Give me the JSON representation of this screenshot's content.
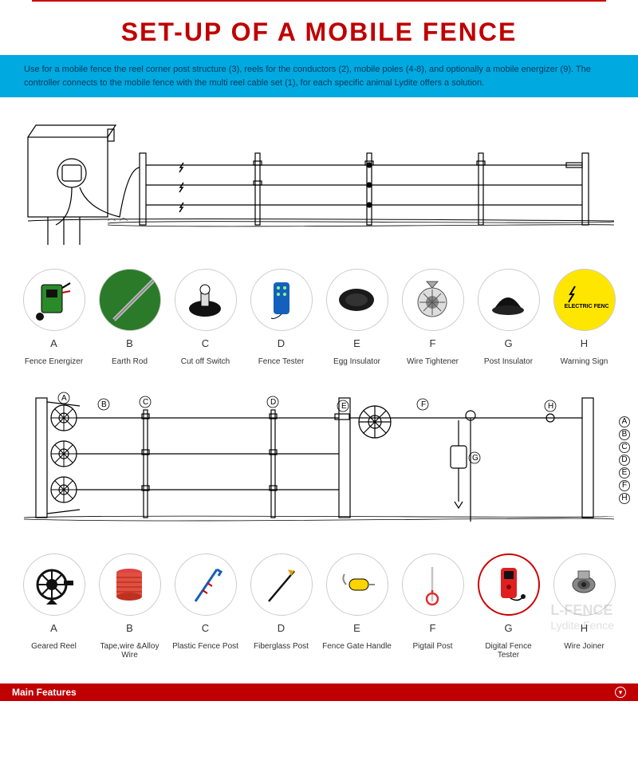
{
  "title": {
    "text": "SET-UP OF A MOBILE FENCE",
    "color": "#c00000",
    "fontsize": 32
  },
  "banner": {
    "text": "Use for a mobile fence the reel corner post structure (3), reels for the conductors (2), mobile poles (4-8), and optionally a mobile energizer (9). The controller connects to the mobile fence with the multi reel cable set (1), for each specific animal Lydite offers a solution.",
    "background": "#00a9e0",
    "text_color": "#003a5c"
  },
  "diagram1": {
    "type": "schematic",
    "stroke": "#000000",
    "description": "building with energizer, ground rods, fence posts with 3 wires, lightning marks"
  },
  "components_top": [
    {
      "letter": "A",
      "label": "Fence Energizer",
      "icon": "energizer",
      "bg": "#ffffff"
    },
    {
      "letter": "B",
      "label": "Earth Rod",
      "icon": "earth-rod",
      "bg": "#2a7a2a"
    },
    {
      "letter": "C",
      "label": "Cut off Switch",
      "icon": "switch",
      "bg": "#ffffff"
    },
    {
      "letter": "D",
      "label": "Fence Tester",
      "icon": "tester",
      "bg": "#ffffff"
    },
    {
      "letter": "E",
      "label": "Egg Insulator",
      "icon": "egg-insulator",
      "bg": "#ffffff"
    },
    {
      "letter": "F",
      "label": "Wire Tightener",
      "icon": "tightener",
      "bg": "#ffffff"
    },
    {
      "letter": "G",
      "label": "Post Insulator",
      "icon": "post-insulator",
      "bg": "#ffffff"
    },
    {
      "letter": "H",
      "label": "Warning Sign",
      "icon": "warning-sign",
      "bg": "#ffe600"
    }
  ],
  "diagram2": {
    "type": "schematic",
    "stroke": "#000000",
    "labels": [
      "A",
      "B",
      "C",
      "D",
      "E",
      "F",
      "G",
      "H"
    ],
    "side_labels": [
      "A",
      "B",
      "C",
      "D",
      "E",
      "F",
      "H"
    ]
  },
  "components_bottom": [
    {
      "letter": "A",
      "label": "Geared Reel",
      "icon": "reel",
      "bg": "#ffffff"
    },
    {
      "letter": "B",
      "label": "Tape,wire &Alloy Wire",
      "icon": "wire-spool",
      "bg": "#ffffff"
    },
    {
      "letter": "C",
      "label": "Plastic Fence Post",
      "icon": "plastic-post",
      "bg": "#ffffff"
    },
    {
      "letter": "D",
      "label": "Fiberglass Post",
      "icon": "fiberglass-post",
      "bg": "#ffffff"
    },
    {
      "letter": "E",
      "label": "Fence Gate Handle",
      "icon": "gate-handle",
      "bg": "#ffffff"
    },
    {
      "letter": "F",
      "label": "Pigtail Post",
      "icon": "pigtail",
      "bg": "#ffffff"
    },
    {
      "letter": "G",
      "label": "Digital Fence Tester",
      "icon": "digital-tester",
      "bg": "#ffffff",
      "highlight": true
    },
    {
      "letter": "H",
      "label": "Wire Joiner",
      "icon": "joiner",
      "bg": "#ffffff"
    }
  ],
  "footer": {
    "text": "Main Features",
    "background": "#c00000",
    "text_color": "#ffffff"
  },
  "watermark": {
    "line1": "L-FENCE",
    "line2": "Lydite Fence"
  },
  "warning_sign_text": "ELECTRIC FENCE"
}
